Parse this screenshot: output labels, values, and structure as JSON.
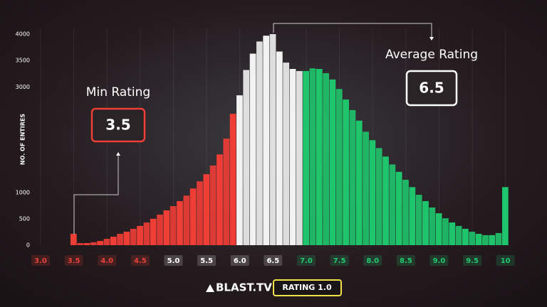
{
  "chart_data": {
    "type": "histogram",
    "y_label": "NO. OF ENTIRES",
    "ylim": [
      0,
      4000
    ],
    "yticks": [
      0,
      500,
      1000,
      3000,
      3500,
      4000
    ],
    "xlim": [
      2.85,
      10.1
    ],
    "xticks": [
      {
        "value": 3.0,
        "label": "3.0"
      },
      3.5,
      {
        "value": 4.0,
        "label": "4.0"
      },
      4.5,
      {
        "value": 5.0,
        "label": "5.0"
      },
      5.5,
      {
        "value": 6.0,
        "label": "6.0"
      },
      6.5,
      {
        "value": 7.0,
        "label": "7.0"
      },
      7.5,
      {
        "value": 8.0,
        "label": "8.0"
      },
      8.5,
      {
        "value": 9.0,
        "label": "9.0"
      },
      9.5,
      10
    ],
    "xtick_colors": [
      "#e8413a",
      "#e8413a",
      "#e8413a",
      "#e8413a",
      "#ffffff",
      "#ffffff",
      "#ffffff",
      "#ffffff",
      "#22c870",
      "#22c870",
      "#22c870",
      "#22c870",
      "#22c870",
      "#22c870",
      "#22c870"
    ],
    "grid": true,
    "series": [
      {
        "color": "#ef3e36",
        "x": [
          3.5,
          3.6,
          3.7,
          3.8,
          3.9,
          4.0,
          4.1,
          4.2,
          4.3,
          4.4,
          4.5,
          4.6,
          4.7,
          4.8,
          4.9,
          5.0,
          5.1,
          5.2,
          5.3,
          5.4,
          5.5,
          5.6,
          5.7,
          5.8,
          5.9
        ],
        "values": [
          215,
          40,
          40,
          55,
          80,
          120,
          160,
          215,
          255,
          310,
          365,
          430,
          500,
          580,
          660,
          740,
          835,
          940,
          1075,
          1210,
          1345,
          1510,
          1720,
          2020,
          2490
        ]
      },
      {
        "color": "#f2f2f2",
        "x": [
          6.0,
          6.1,
          6.2,
          6.3,
          6.4,
          6.5,
          6.6,
          6.7,
          6.8,
          6.9
        ],
        "values": [
          2840,
          3320,
          3630,
          3860,
          3970,
          4000,
          3670,
          3460,
          3340,
          3300
        ]
      },
      {
        "color": "#1fc56c",
        "x": [
          7.0,
          7.1,
          7.2,
          7.3,
          7.4,
          7.5,
          7.6,
          7.7,
          7.8,
          7.9,
          8.0,
          8.1,
          8.2,
          8.3,
          8.4,
          8.5,
          8.6,
          8.7,
          8.8,
          8.9,
          9.0,
          9.1,
          9.2,
          9.3,
          9.4,
          9.5,
          9.6,
          9.7,
          9.8,
          9.9,
          10.0
        ],
        "values": [
          3300,
          3350,
          3340,
          3260,
          3140,
          2960,
          2760,
          2560,
          2360,
          2150,
          1990,
          1840,
          1680,
          1530,
          1390,
          1240,
          1100,
          955,
          835,
          715,
          605,
          510,
          430,
          365,
          310,
          255,
          215,
          190,
          190,
          230,
          1100
        ]
      }
    ],
    "annotations": [
      {
        "label": "Min Rating",
        "value": 3.5
      },
      {
        "label": "Average Rating",
        "value": 6.5
      }
    ],
    "brand": "BLAST.TV",
    "badge": "RATING 1.0"
  }
}
